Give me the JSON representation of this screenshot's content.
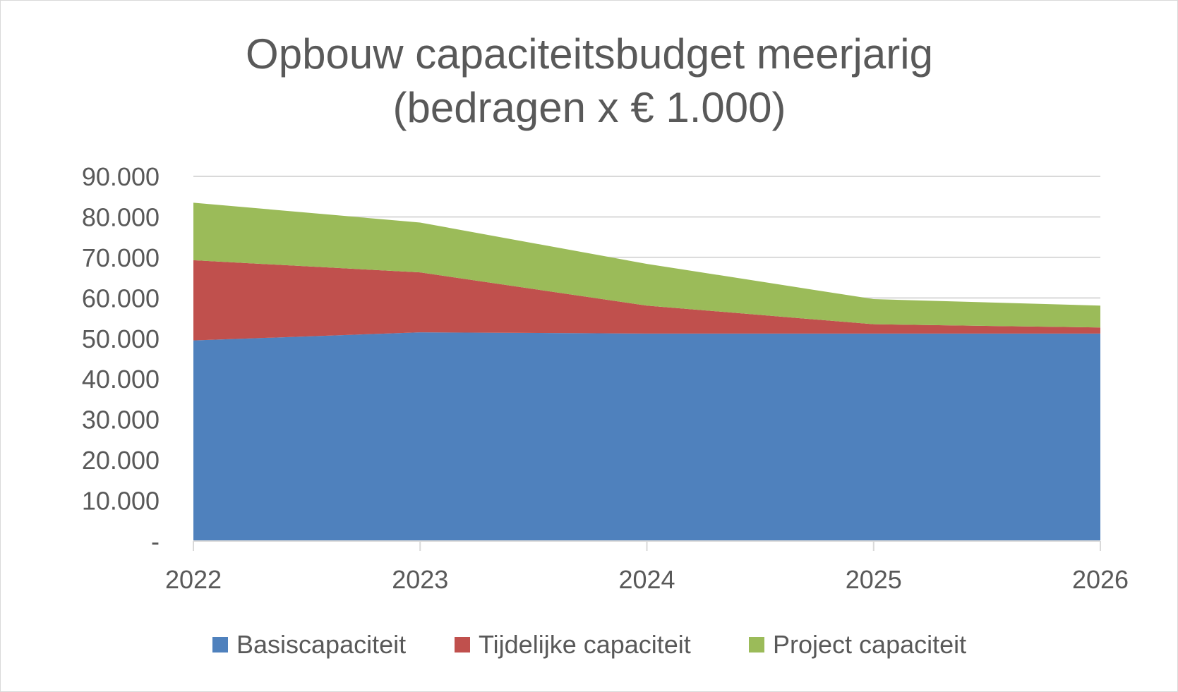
{
  "chart_data": {
    "type": "area",
    "stacked": true,
    "title_line1": "Opbouw capaciteitsbudget meerjarig",
    "title_line2": "(bedragen x € 1.000)",
    "categories": [
      "2022",
      "2023",
      "2024",
      "2025",
      "2026"
    ],
    "ylim": [
      0,
      90000
    ],
    "y_ticks": [
      {
        "value": 0,
        "label": "-"
      },
      {
        "value": 10000,
        "label": "10.000"
      },
      {
        "value": 20000,
        "label": "20.000"
      },
      {
        "value": 30000,
        "label": "30.000"
      },
      {
        "value": 40000,
        "label": "40.000"
      },
      {
        "value": 50000,
        "label": "50.000"
      },
      {
        "value": 60000,
        "label": "60.000"
      },
      {
        "value": 70000,
        "label": "70.000"
      },
      {
        "value": 80000,
        "label": "80.000"
      },
      {
        "value": 90000,
        "label": "90.000"
      }
    ],
    "grid": true,
    "legend_position": "bottom",
    "series": [
      {
        "name": "Basiscapaciteit",
        "color": "#4f81bd",
        "values": [
          49500,
          51500,
          51200,
          51200,
          51200
        ]
      },
      {
        "name": "Tijdelijke capaciteit",
        "color": "#c0504d",
        "values": [
          19800,
          14800,
          6900,
          2300,
          1500
        ]
      },
      {
        "name": "Project capaciteit",
        "color": "#9bbb59",
        "values": [
          14200,
          12300,
          10300,
          6200,
          5400
        ]
      }
    ]
  }
}
